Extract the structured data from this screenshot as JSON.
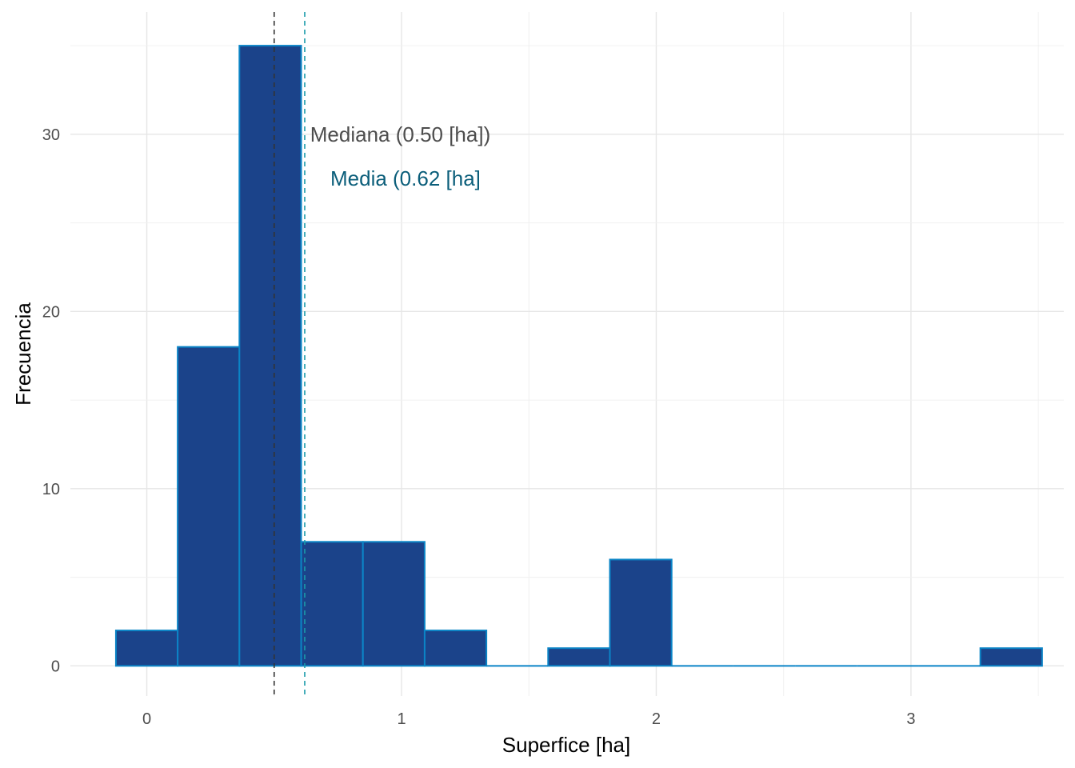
{
  "chart_data": {
    "type": "bar",
    "subtype": "histogram",
    "xlabel": "Superfice [ha]",
    "ylabel": "Frecuencia",
    "xlim": [
      -0.3,
      3.6
    ],
    "ylim": [
      -1.7,
      36.9
    ],
    "x_ticks": [
      0,
      1,
      2,
      3
    ],
    "y_ticks": [
      0,
      10,
      20,
      30
    ],
    "grid": true,
    "bin_width": 0.2424,
    "bin_start": -0.1212,
    "counts": [
      2,
      18,
      35,
      7,
      7,
      2,
      0,
      1,
      6,
      0,
      0,
      0,
      0,
      0,
      1
    ],
    "colors": {
      "fill": "#1B438A",
      "outline": "#0B84C6",
      "median_line": "#333333",
      "mean_line": "#1A9BAA",
      "median_text": "#4D4D4D",
      "mean_text": "#0B5E7A"
    },
    "annotations": [
      {
        "name": "median",
        "value": 0.5,
        "label": "Mediana (0.50 [ha])",
        "y": 30
      },
      {
        "name": "mean",
        "value": 0.62,
        "label": "Media (0.62 [ha]",
        "y": 27.5
      }
    ]
  }
}
